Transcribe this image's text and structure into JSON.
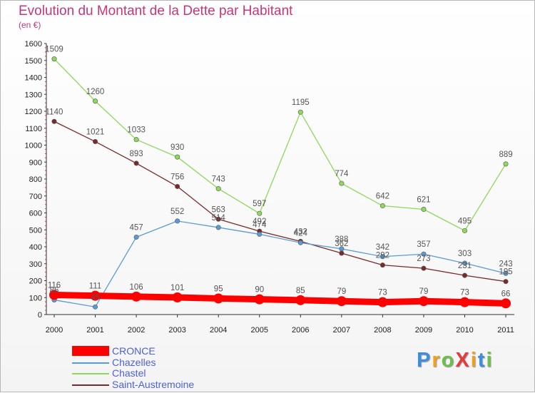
{
  "title": "Evolution du Montant de la Dette par Habitant",
  "subtitle": "(en €)",
  "chart_data": {
    "type": "line",
    "categories": [
      "2000",
      "2001",
      "2002",
      "2003",
      "2004",
      "2005",
      "2006",
      "2007",
      "2008",
      "2009",
      "2010",
      "2011"
    ],
    "ylim": [
      0,
      1600
    ],
    "yticks": [
      0,
      100,
      200,
      300,
      400,
      500,
      600,
      700,
      800,
      900,
      1000,
      1100,
      1200,
      1300,
      1400,
      1500,
      1600
    ],
    "grid": false,
    "legend_position": "bottom-left",
    "series": [
      {
        "name": "CRONCE",
        "color": "#ff0000",
        "thick": true,
        "values": [
          116,
          111,
          106,
          101,
          95,
          90,
          85,
          79,
          73,
          79,
          73,
          66
        ]
      },
      {
        "name": "Chazelles",
        "color": "#5b9bd5",
        "values": [
          86,
          45,
          457,
          552,
          514,
          474,
          424,
          388,
          342,
          357,
          303,
          243
        ]
      },
      {
        "name": "Chastel",
        "color": "#8ed85a",
        "values": [
          1509,
          1260,
          1033,
          930,
          743,
          597,
          1195,
          774,
          642,
          621,
          495,
          889
        ]
      },
      {
        "name": "Saint-Austremoine",
        "color": "#7a2a2a",
        "values": [
          1140,
          1021,
          893,
          756,
          563,
          492,
          432,
          362,
          292,
          273,
          231,
          195
        ]
      }
    ]
  },
  "legend": {
    "items": [
      {
        "label": "CRONCE"
      },
      {
        "label": "Chazelles"
      },
      {
        "label": "Chastel"
      },
      {
        "label": "Saint-Austremoine"
      }
    ]
  },
  "logo": {
    "text": "ProXiti",
    "colors": [
      "#3f8fd8",
      "#f0a020",
      "#6cc04a",
      "#e23c3c",
      "#f0a020",
      "#3f8fd8",
      "#6cc04a"
    ]
  }
}
